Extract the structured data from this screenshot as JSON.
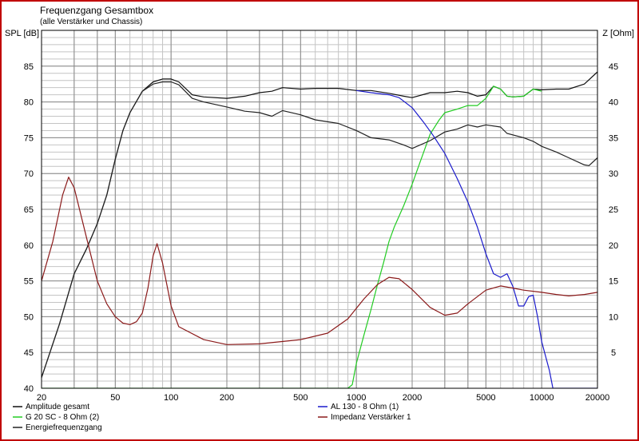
{
  "chart_data": {
    "type": "line",
    "title": "Frequenzgang Gesamtbox",
    "subtitle": "(alle Verstärker und Chassis)",
    "y_left_label": "SPL [dB]",
    "y_right_label": "Z [Ohm]",
    "x_scale": "log",
    "xlim": [
      20,
      20000
    ],
    "ylim_left": [
      40,
      90
    ],
    "ylim_right": [
      0,
      50
    ],
    "x_ticks": [
      20,
      50,
      100,
      200,
      500,
      1000,
      2000,
      5000,
      10000,
      20000
    ],
    "y_left_ticks": [
      40,
      45,
      50,
      55,
      60,
      65,
      70,
      75,
      80,
      85
    ],
    "y_right_ticks": [
      5,
      10,
      15,
      20,
      25,
      30,
      35,
      40,
      45
    ],
    "x_tick_labels": [
      "20",
      "50",
      "100",
      "200",
      "500",
      "1000",
      "2000",
      "5000",
      "10000",
      "20000"
    ],
    "y_left_tick_labels": [
      "40",
      "45",
      "50",
      "55",
      "60",
      "65",
      "70",
      "75",
      "80",
      "85"
    ],
    "y_right_tick_labels": [
      "5",
      "10",
      "15",
      "20",
      "25",
      "30",
      "35",
      "40",
      "45"
    ],
    "grid": true,
    "legend_position": "bottom",
    "series": [
      {
        "name": "Amplitude gesamt",
        "axis": "left",
        "color": "#111111",
        "points": [
          [
            20,
            41.5
          ],
          [
            25,
            49
          ],
          [
            30,
            56
          ],
          [
            35,
            59.5
          ],
          [
            40,
            63
          ],
          [
            45,
            67
          ],
          [
            50,
            72
          ],
          [
            55,
            76
          ],
          [
            60,
            78.5
          ],
          [
            70,
            81.5
          ],
          [
            80,
            82.8
          ],
          [
            90,
            83.2
          ],
          [
            100,
            83.2
          ],
          [
            110,
            82.8
          ],
          [
            130,
            81
          ],
          [
            150,
            80.7
          ],
          [
            200,
            80.5
          ],
          [
            250,
            80.8
          ],
          [
            300,
            81.3
          ],
          [
            350,
            81.5
          ],
          [
            400,
            82
          ],
          [
            500,
            81.8
          ],
          [
            600,
            81.9
          ],
          [
            800,
            81.9
          ],
          [
            1000,
            81.6
          ],
          [
            1200,
            81.6
          ],
          [
            1500,
            81.2
          ],
          [
            1800,
            80.8
          ],
          [
            2000,
            80.6
          ],
          [
            2500,
            81.3
          ],
          [
            3000,
            81.3
          ],
          [
            3500,
            81.5
          ],
          [
            4000,
            81.3
          ],
          [
            4500,
            80.8
          ],
          [
            5000,
            81
          ],
          [
            5500,
            82.2
          ],
          [
            6000,
            81.8
          ],
          [
            6500,
            80.8
          ],
          [
            7000,
            80.7
          ],
          [
            8000,
            80.8
          ],
          [
            9000,
            81.8
          ],
          [
            10000,
            81.7
          ],
          [
            12000,
            81.8
          ],
          [
            14000,
            81.8
          ],
          [
            17000,
            82.5
          ],
          [
            20000,
            84.2
          ]
        ]
      },
      {
        "name": "G 20 SC - 8 Ohm (2)",
        "axis": "left",
        "color": "#22cc22",
        "points": [
          [
            20,
            40
          ],
          [
            900,
            40
          ],
          [
            950,
            40.5
          ],
          [
            1000,
            43.5
          ],
          [
            1100,
            47.5
          ],
          [
            1200,
            51
          ],
          [
            1300,
            54.5
          ],
          [
            1400,
            57.5
          ],
          [
            1500,
            60.5
          ],
          [
            1600,
            62.5
          ],
          [
            1800,
            65.5
          ],
          [
            2000,
            68.5
          ],
          [
            2200,
            71.5
          ],
          [
            2500,
            75.5
          ],
          [
            2800,
            77.5
          ],
          [
            3000,
            78.5
          ],
          [
            3500,
            79
          ],
          [
            4000,
            79.5
          ],
          [
            4500,
            79.5
          ],
          [
            5000,
            80.5
          ],
          [
            5500,
            82.2
          ],
          [
            6000,
            81.8
          ],
          [
            6500,
            80.8
          ],
          [
            7000,
            80.7
          ],
          [
            8000,
            80.8
          ],
          [
            9000,
            81.8
          ],
          [
            10000,
            81.5
          ]
        ]
      },
      {
        "name": "Energiefrequenzgang",
        "axis": "left",
        "color": "#222222",
        "points": [
          [
            20,
            41.5
          ],
          [
            25,
            49
          ],
          [
            30,
            56
          ],
          [
            35,
            59.5
          ],
          [
            40,
            63
          ],
          [
            45,
            67
          ],
          [
            50,
            72
          ],
          [
            55,
            76
          ],
          [
            60,
            78.5
          ],
          [
            70,
            81.5
          ],
          [
            80,
            82.5
          ],
          [
            90,
            82.8
          ],
          [
            100,
            82.8
          ],
          [
            110,
            82.4
          ],
          [
            130,
            80.5
          ],
          [
            150,
            80
          ],
          [
            200,
            79.3
          ],
          [
            250,
            78.7
          ],
          [
            300,
            78.5
          ],
          [
            350,
            78
          ],
          [
            400,
            78.8
          ],
          [
            500,
            78.2
          ],
          [
            600,
            77.5
          ],
          [
            800,
            77
          ],
          [
            1000,
            76
          ],
          [
            1200,
            75
          ],
          [
            1500,
            74.7
          ],
          [
            1800,
            74
          ],
          [
            2000,
            73.5
          ],
          [
            2500,
            74.6
          ],
          [
            3000,
            75.8
          ],
          [
            3500,
            76.2
          ],
          [
            4000,
            76.8
          ],
          [
            4500,
            76.5
          ],
          [
            5000,
            76.8
          ],
          [
            6000,
            76.5
          ],
          [
            6500,
            75.6
          ],
          [
            8000,
            75
          ],
          [
            9000,
            74.5
          ],
          [
            10000,
            73.8
          ],
          [
            12000,
            73
          ],
          [
            14000,
            72.2
          ],
          [
            17000,
            71.2
          ],
          [
            18000,
            71.1
          ],
          [
            20000,
            72.2
          ]
        ]
      },
      {
        "name": "AL 130 - 8 Ohm (1)",
        "axis": "left",
        "color": "#1a1acc",
        "points": [
          [
            1000,
            81.6
          ],
          [
            1200,
            81.3
          ],
          [
            1500,
            81
          ],
          [
            1700,
            80.6
          ],
          [
            2000,
            79.2
          ],
          [
            2300,
            77.2
          ],
          [
            2600,
            75.3
          ],
          [
            3000,
            72.8
          ],
          [
            3500,
            69.3
          ],
          [
            4000,
            66
          ],
          [
            4500,
            62.5
          ],
          [
            5000,
            58.8
          ],
          [
            5500,
            56
          ],
          [
            6000,
            55.5
          ],
          [
            6500,
            56
          ],
          [
            7000,
            54.2
          ],
          [
            7500,
            51.5
          ],
          [
            8000,
            51.5
          ],
          [
            8500,
            52.8
          ],
          [
            9000,
            53
          ],
          [
            9500,
            50
          ],
          [
            10000,
            46.5
          ],
          [
            11000,
            42.5
          ],
          [
            11500,
            40
          ],
          [
            20000,
            40
          ]
        ]
      },
      {
        "name": "Impedanz Verstärker 1",
        "axis": "right",
        "color": "#8b1a1a",
        "points": [
          [
            20,
            15
          ],
          [
            23,
            20.5
          ],
          [
            26,
            27
          ],
          [
            28,
            29.5
          ],
          [
            30,
            28
          ],
          [
            35,
            21
          ],
          [
            40,
            15
          ],
          [
            45,
            11.8
          ],
          [
            50,
            10
          ],
          [
            55,
            9.1
          ],
          [
            60,
            8.9
          ],
          [
            65,
            9.3
          ],
          [
            70,
            10.5
          ],
          [
            75,
            14
          ],
          [
            80,
            18.5
          ],
          [
            84,
            20.2
          ],
          [
            90,
            17.5
          ],
          [
            100,
            11.5
          ],
          [
            110,
            8.6
          ],
          [
            150,
            6.8
          ],
          [
            200,
            6.1
          ],
          [
            300,
            6.2
          ],
          [
            500,
            6.8
          ],
          [
            700,
            7.7
          ],
          [
            900,
            9.7
          ],
          [
            1100,
            12.5
          ],
          [
            1300,
            14.5
          ],
          [
            1500,
            15.5
          ],
          [
            1700,
            15.3
          ],
          [
            2000,
            13.8
          ],
          [
            2500,
            11.3
          ],
          [
            3000,
            10.2
          ],
          [
            3500,
            10.5
          ],
          [
            4000,
            11.8
          ],
          [
            5000,
            13.7
          ],
          [
            6000,
            14.3
          ],
          [
            7000,
            14
          ],
          [
            8000,
            13.7
          ],
          [
            10000,
            13.4
          ],
          [
            12000,
            13.1
          ],
          [
            14000,
            12.9
          ],
          [
            17000,
            13.1
          ],
          [
            20000,
            13.4
          ]
        ]
      }
    ]
  }
}
